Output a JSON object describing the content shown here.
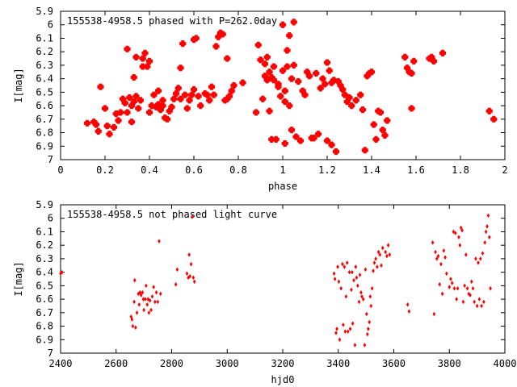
{
  "chart_data": [
    {
      "type": "scatter",
      "title": "155538-4958.5 phased with P=262.0day",
      "xlabel": "phase",
      "ylabel": "I[mag]",
      "xlim": [
        0,
        2
      ],
      "ylim": [
        5.9,
        7.0
      ],
      "y_inverted": true,
      "grid": false,
      "marker": "star",
      "color": "#ff0000",
      "x_ticks": [
        "0",
        "0.2",
        "0.4",
        "0.6",
        "0.8",
        "1",
        "1.2",
        "1.4",
        "1.6",
        "1.8",
        "2"
      ],
      "y_ticks": [
        "5.9",
        "6",
        "6.1",
        "6.2",
        "6.3",
        "6.4",
        "6.5",
        "6.6",
        "6.7",
        "6.8",
        "6.9",
        "7"
      ],
      "points": [
        [
          0.12,
          6.73
        ],
        [
          0.15,
          6.72
        ],
        [
          0.16,
          6.74
        ],
        [
          0.17,
          6.79
        ],
        [
          0.18,
          6.46
        ],
        [
          0.2,
          6.62
        ],
        [
          0.21,
          6.75
        ],
        [
          0.22,
          6.81
        ],
        [
          0.24,
          6.76
        ],
        [
          0.25,
          6.66
        ],
        [
          0.26,
          6.71
        ],
        [
          0.27,
          6.65
        ],
        [
          0.28,
          6.55
        ],
        [
          0.29,
          6.58
        ],
        [
          0.3,
          6.65
        ],
        [
          0.3,
          6.18
        ],
        [
          0.31,
          6.54
        ],
        [
          0.32,
          6.72
        ],
        [
          0.32,
          6.6
        ],
        [
          0.33,
          6.57
        ],
        [
          0.33,
          6.39
        ],
        [
          0.34,
          6.53
        ],
        [
          0.34,
          6.24
        ],
        [
          0.35,
          6.62
        ],
        [
          0.36,
          6.56
        ],
        [
          0.37,
          6.31
        ],
        [
          0.37,
          6.25
        ],
        [
          0.38,
          6.21
        ],
        [
          0.39,
          6.31
        ],
        [
          0.4,
          6.65
        ],
        [
          0.4,
          6.27
        ],
        [
          0.41,
          6.6
        ],
        [
          0.42,
          6.52
        ],
        [
          0.43,
          6.61
        ],
        [
          0.44,
          6.59
        ],
        [
          0.44,
          6.49
        ],
        [
          0.45,
          6.63
        ],
        [
          0.46,
          6.6
        ],
        [
          0.46,
          6.56
        ],
        [
          0.47,
          6.69
        ],
        [
          0.48,
          6.7
        ],
        [
          0.49,
          6.64
        ],
        [
          0.5,
          6.61
        ],
        [
          0.51,
          6.55
        ],
        [
          0.52,
          6.51
        ],
        [
          0.53,
          6.47
        ],
        [
          0.54,
          6.55
        ],
        [
          0.54,
          6.32
        ],
        [
          0.55,
          6.14
        ],
        [
          0.56,
          6.52
        ],
        [
          0.57,
          6.62
        ],
        [
          0.58,
          6.56
        ],
        [
          0.59,
          6.52
        ],
        [
          0.6,
          6.48
        ],
        [
          0.6,
          6.11
        ],
        [
          0.61,
          6.1
        ],
        [
          0.62,
          6.53
        ],
        [
          0.63,
          6.6
        ],
        [
          0.65,
          6.51
        ],
        [
          0.66,
          6.52
        ],
        [
          0.67,
          6.56
        ],
        [
          0.68,
          6.46
        ],
        [
          0.69,
          6.52
        ],
        [
          0.7,
          6.16
        ],
        [
          0.71,
          6.09
        ],
        [
          0.72,
          6.06
        ],
        [
          0.73,
          6.07
        ],
        [
          0.74,
          6.56
        ],
        [
          0.75,
          6.55
        ],
        [
          0.75,
          6.25
        ],
        [
          0.76,
          6.53
        ],
        [
          0.77,
          6.49
        ],
        [
          0.78,
          6.45
        ],
        [
          0.82,
          6.43
        ],
        [
          0.88,
          6.65
        ],
        [
          0.89,
          6.15
        ],
        [
          0.9,
          6.26
        ],
        [
          0.91,
          6.55
        ],
        [
          0.92,
          6.29
        ],
        [
          0.92,
          6.38
        ],
        [
          0.93,
          6.24
        ],
        [
          0.93,
          6.41
        ],
        [
          0.94,
          6.35
        ],
        [
          0.94,
          6.64
        ],
        [
          0.95,
          6.39
        ],
        [
          0.95,
          6.85
        ],
        [
          0.96,
          6.31
        ],
        [
          0.96,
          6.41
        ],
        [
          0.97,
          6.85
        ],
        [
          0.98,
          6.44
        ],
        [
          0.98,
          6.46
        ],
        [
          0.99,
          6.53
        ],
        [
          1.0,
          6.0
        ],
        [
          1.0,
          6.34
        ],
        [
          1.01,
          6.49
        ],
        [
          1.01,
          6.57
        ],
        [
          1.01,
          6.88
        ],
        [
          1.02,
          6.19
        ],
        [
          1.02,
          6.31
        ],
        [
          1.03,
          6.08
        ],
        [
          1.03,
          6.6
        ],
        [
          1.04,
          6.4
        ],
        [
          1.04,
          6.78
        ],
        [
          1.05,
          5.98
        ],
        [
          1.05,
          6.3
        ],
        [
          1.06,
          6.83
        ],
        [
          1.07,
          6.42
        ],
        [
          1.08,
          6.86
        ],
        [
          1.09,
          6.49
        ],
        [
          1.1,
          6.52
        ],
        [
          1.11,
          6.35
        ],
        [
          1.12,
          6.38
        ],
        [
          1.13,
          6.84
        ],
        [
          1.14,
          6.84
        ],
        [
          1.15,
          6.36
        ],
        [
          1.16,
          6.81
        ],
        [
          1.17,
          6.47
        ],
        [
          1.18,
          6.4
        ],
        [
          1.19,
          6.44
        ],
        [
          1.2,
          6.28
        ],
        [
          1.2,
          6.86
        ],
        [
          1.21,
          6.34
        ],
        [
          1.22,
          6.43
        ],
        [
          1.22,
          6.89
        ],
        [
          1.23,
          6.41
        ],
        [
          1.24,
          6.94
        ],
        [
          1.25,
          6.42
        ],
        [
          1.26,
          6.45
        ],
        [
          1.27,
          6.48
        ],
        [
          1.28,
          6.52
        ],
        [
          1.29,
          6.57
        ],
        [
          1.3,
          6.54
        ],
        [
          1.31,
          6.6
        ],
        [
          1.33,
          6.56
        ],
        [
          1.35,
          6.52
        ],
        [
          1.36,
          6.63
        ],
        [
          1.37,
          6.93
        ],
        [
          1.38,
          6.38
        ],
        [
          1.39,
          6.36
        ],
        [
          1.4,
          6.35
        ],
        [
          1.41,
          6.74
        ],
        [
          1.42,
          6.85
        ],
        [
          1.43,
          6.64
        ],
        [
          1.44,
          6.65
        ],
        [
          1.45,
          6.78
        ],
        [
          1.46,
          6.82
        ],
        [
          1.47,
          6.71
        ],
        [
          1.55,
          6.24
        ],
        [
          1.56,
          6.32
        ],
        [
          1.57,
          6.35
        ],
        [
          1.58,
          6.36
        ],
        [
          1.58,
          6.62
        ],
        [
          1.59,
          6.27
        ],
        [
          1.66,
          6.25
        ],
        [
          1.67,
          6.24
        ],
        [
          1.68,
          6.27
        ],
        [
          1.72,
          6.21
        ],
        [
          1.93,
          6.64
        ],
        [
          1.95,
          6.7
        ]
      ]
    },
    {
      "type": "scatter",
      "title": "155538-4958.5 not phased light curve",
      "xlabel": "hjd0",
      "ylabel": "I[mag]",
      "xlim": [
        2400,
        4000
      ],
      "ylim": [
        5.9,
        7.0
      ],
      "y_inverted": true,
      "grid": false,
      "marker": "diamond",
      "color": "#ff0000",
      "x_ticks": [
        "2400",
        "2600",
        "2800",
        "3000",
        "3200",
        "3400",
        "3600",
        "3800",
        "4000"
      ],
      "y_ticks": [
        "5.9",
        "6",
        "6.1",
        "6.2",
        "6.3",
        "6.4",
        "6.5",
        "6.6",
        "6.7",
        "6.8",
        "6.9",
        "7"
      ],
      "points": [
        [
          2400,
          6.41
        ],
        [
          2405,
          6.4
        ],
        [
          2654,
          6.73
        ],
        [
          2657,
          6.75
        ],
        [
          2660,
          6.8
        ],
        [
          2665,
          6.62
        ],
        [
          2667,
          6.46
        ],
        [
          2670,
          6.81
        ],
        [
          2675,
          6.7
        ],
        [
          2680,
          6.56
        ],
        [
          2683,
          6.64
        ],
        [
          2686,
          6.55
        ],
        [
          2690,
          6.57
        ],
        [
          2695,
          6.55
        ],
        [
          2698,
          6.6
        ],
        [
          2700,
          6.68
        ],
        [
          2705,
          6.6
        ],
        [
          2708,
          6.5
        ],
        [
          2712,
          6.64
        ],
        [
          2715,
          6.6
        ],
        [
          2718,
          6.7
        ],
        [
          2722,
          6.61
        ],
        [
          2726,
          6.68
        ],
        [
          2730,
          6.58
        ],
        [
          2735,
          6.51
        ],
        [
          2740,
          6.62
        ],
        [
          2745,
          6.55
        ],
        [
          2750,
          6.62
        ],
        [
          2755,
          6.17
        ],
        [
          2760,
          6.56
        ],
        [
          2815,
          6.49
        ],
        [
          2820,
          6.38
        ],
        [
          2855,
          6.41
        ],
        [
          2860,
          6.44
        ],
        [
          2863,
          6.27
        ],
        [
          2866,
          6.43
        ],
        [
          2870,
          6.34
        ],
        [
          2874,
          5.99
        ],
        [
          2878,
          6.44
        ],
        [
          2882,
          6.47
        ],
        [
          2390,
          6.41
        ],
        [
          3385,
          6.41
        ],
        [
          3388,
          6.45
        ],
        [
          3392,
          6.85
        ],
        [
          3395,
          6.82
        ],
        [
          3398,
          6.36
        ],
        [
          3402,
          6.47
        ],
        [
          3405,
          6.9
        ],
        [
          3410,
          6.52
        ],
        [
          3415,
          6.34
        ],
        [
          3418,
          6.79
        ],
        [
          3422,
          6.36
        ],
        [
          3425,
          6.84
        ],
        [
          3428,
          6.58
        ],
        [
          3432,
          6.33
        ],
        [
          3435,
          6.84
        ],
        [
          3440,
          6.4
        ],
        [
          3443,
          6.82
        ],
        [
          3447,
          6.53
        ],
        [
          3450,
          6.4
        ],
        [
          3452,
          6.78
        ],
        [
          3456,
          6.46
        ],
        [
          3460,
          6.94
        ],
        [
          3463,
          6.36
        ],
        [
          3466,
          6.44
        ],
        [
          3470,
          6.5
        ],
        [
          3475,
          6.62
        ],
        [
          3478,
          6.42
        ],
        [
          3482,
          6.55
        ],
        [
          3485,
          6.58
        ],
        [
          3490,
          6.6
        ],
        [
          3495,
          6.94
        ],
        [
          3498,
          6.38
        ],
        [
          3502,
          6.71
        ],
        [
          3505,
          6.86
        ],
        [
          3508,
          6.82
        ],
        [
          3512,
          6.77
        ],
        [
          3515,
          6.58
        ],
        [
          3518,
          6.65
        ],
        [
          3522,
          6.52
        ],
        [
          3526,
          6.39
        ],
        [
          3530,
          6.33
        ],
        [
          3535,
          6.3
        ],
        [
          3540,
          6.36
        ],
        [
          3545,
          6.25
        ],
        [
          3550,
          6.27
        ],
        [
          3555,
          6.35
        ],
        [
          3560,
          6.22
        ],
        [
          3570,
          6.25
        ],
        [
          3575,
          6.28
        ],
        [
          3580,
          6.2
        ],
        [
          3585,
          6.27
        ],
        [
          3650,
          6.64
        ],
        [
          3655,
          6.69
        ],
        [
          3740,
          6.18
        ],
        [
          3745,
          6.71
        ],
        [
          3750,
          6.25
        ],
        [
          3755,
          6.3
        ],
        [
          3760,
          6.28
        ],
        [
          3765,
          6.49
        ],
        [
          3770,
          6.34
        ],
        [
          3775,
          6.56
        ],
        [
          3780,
          6.24
        ],
        [
          3785,
          6.29
        ],
        [
          3790,
          6.41
        ],
        [
          3800,
          6.51
        ],
        [
          3805,
          6.45
        ],
        [
          3810,
          6.48
        ],
        [
          3815,
          6.1
        ],
        [
          3818,
          6.52
        ],
        [
          3822,
          6.11
        ],
        [
          3826,
          6.6
        ],
        [
          3830,
          6.52
        ],
        [
          3834,
          6.14
        ],
        [
          3838,
          6.2
        ],
        [
          3842,
          6.07
        ],
        [
          3846,
          6.09
        ],
        [
          3850,
          6.62
        ],
        [
          3855,
          6.5
        ],
        [
          3860,
          6.27
        ],
        [
          3865,
          6.52
        ],
        [
          3870,
          6.56
        ],
        [
          3875,
          6.57
        ],
        [
          3880,
          6.47
        ],
        [
          3885,
          6.52
        ],
        [
          3890,
          6.62
        ],
        [
          3895,
          6.3
        ],
        [
          3900,
          6.65
        ],
        [
          3904,
          6.33
        ],
        [
          3908,
          6.6
        ],
        [
          3912,
          6.3
        ],
        [
          3916,
          6.65
        ],
        [
          3920,
          6.26
        ],
        [
          3924,
          6.62
        ],
        [
          3928,
          6.18
        ],
        [
          3932,
          6.1
        ],
        [
          3936,
          6.06
        ],
        [
          3940,
          5.98
        ],
        [
          3944,
          6.14
        ],
        [
          3948,
          6.52
        ]
      ]
    }
  ]
}
